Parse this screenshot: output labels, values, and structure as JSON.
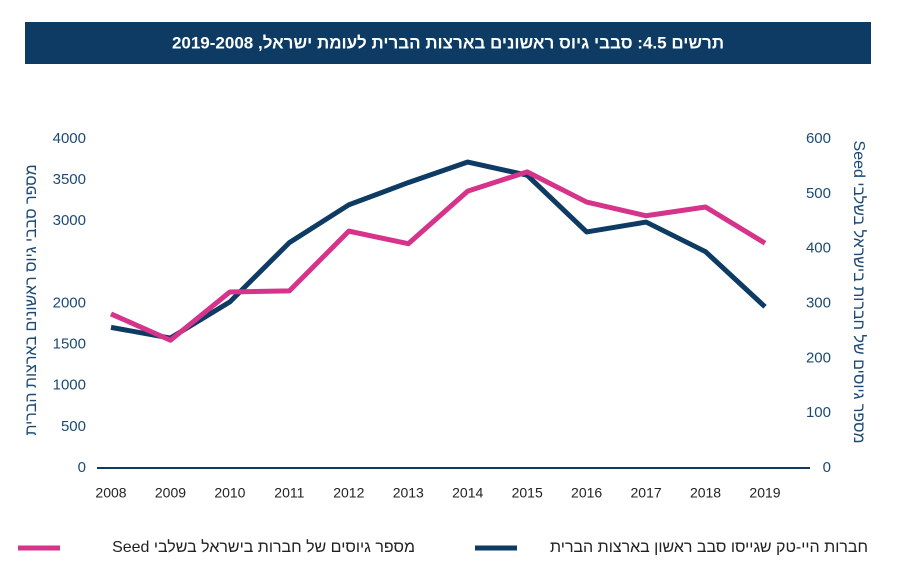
{
  "chart_data": {
    "type": "line",
    "title": "תרשים 4.5: סבבי גיוס ראשונים בארצות הברית לעומת ישראל, 2019-2008",
    "y_label": "מספר סבבי גיוס ראשונים בארצות הברית",
    "y2_label": "מספר גיוסים של חברות בישראל בשלבי Seed",
    "categories": [
      "2008",
      "2009",
      "2010",
      "2011",
      "2012",
      "2013",
      "2014",
      "2015",
      "2016",
      "2017",
      "2018",
      "2019"
    ],
    "ylim": [
      0,
      4000
    ],
    "yticks": [
      0,
      500,
      1000,
      1500,
      2000,
      3000,
      3500,
      4000
    ],
    "y2lim": [
      0,
      600
    ],
    "y2ticks": [
      0,
      100,
      200,
      300,
      400,
      500,
      600
    ],
    "series": [
      {
        "name": "חברות היי-טק שגייסו סבב ראשון בארצות הברית",
        "color": "#0d3b63",
        "values": [
          1710,
          1580,
          2020,
          2740,
          3200,
          3470,
          3720,
          3560,
          2870,
          2990,
          2630,
          1960
        ]
      },
      {
        "name": "מספר גיוסים של חברות בישראל בשלבי Seed",
        "color": "#d6338a",
        "axis": "y2",
        "values": [
          281,
          233,
          321,
          323,
          432,
          409,
          505,
          540,
          485,
          460,
          476,
          410
        ]
      }
    ]
  }
}
